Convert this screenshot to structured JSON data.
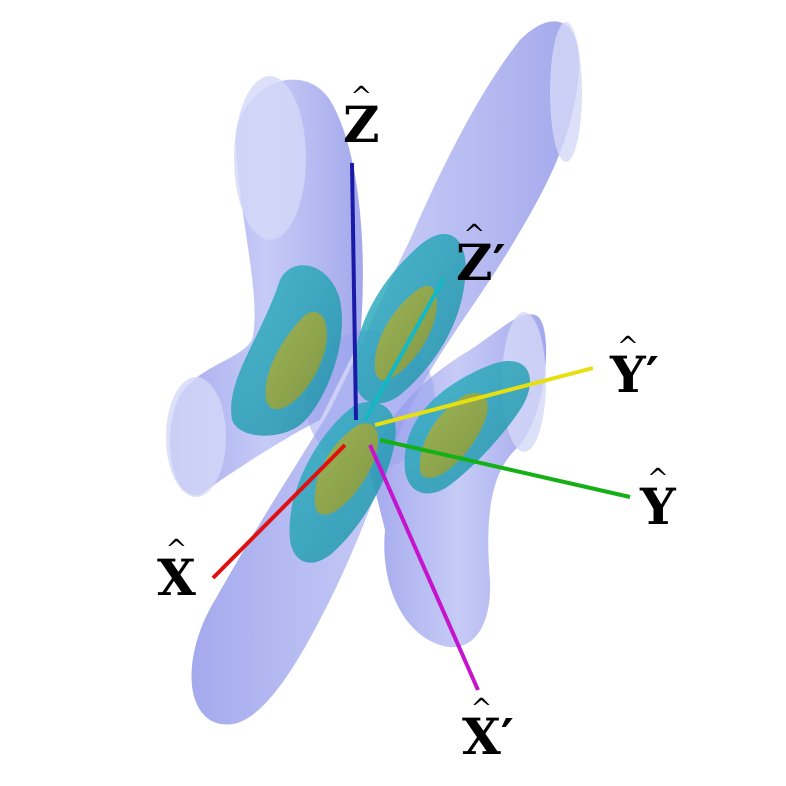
{
  "figure": {
    "description_type": "3d-isosurface-with-axes",
    "colors": {
      "outer_lobe": "#8f97ee",
      "middle_lobe": "#2aa7b8",
      "inner_lobe": "#9aa83e",
      "axis_x": "#e01010",
      "axis_y": "#10b010",
      "axis_z": "#1010a8",
      "axis_x_prime": "#c010c8",
      "axis_y_prime": "#e8e010",
      "axis_z_prime": "#10b8c0"
    }
  },
  "axes": {
    "x": {
      "hat": "^",
      "label": "X",
      "prime": ""
    },
    "y": {
      "hat": "^",
      "label": "Y",
      "prime": ""
    },
    "z": {
      "hat": "^",
      "label": "Z",
      "prime": ""
    },
    "x_prime": {
      "hat": "^",
      "label": "X",
      "prime": "′"
    },
    "y_prime": {
      "hat": "^",
      "label": "Y",
      "prime": "′"
    },
    "z_prime": {
      "hat": "^",
      "label": "Z",
      "prime": "′"
    }
  }
}
